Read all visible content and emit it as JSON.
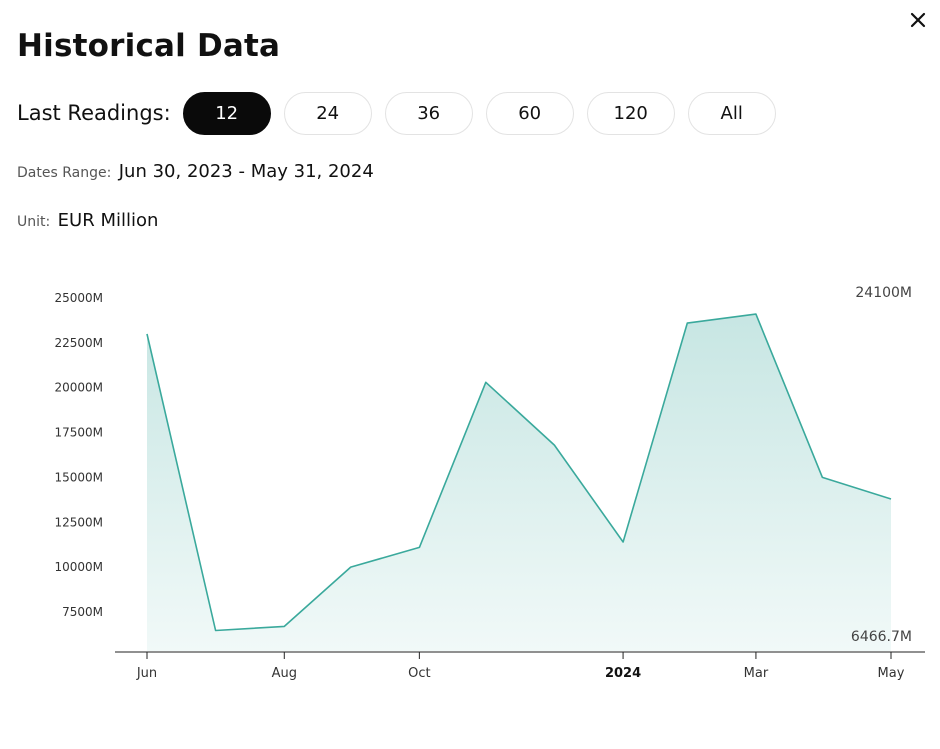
{
  "header": {
    "title": "Historical Data",
    "close_icon": "close-icon"
  },
  "readings": {
    "label": "Last Readings:",
    "options": [
      "12",
      "24",
      "36",
      "60",
      "120",
      "All"
    ],
    "selected": "12"
  },
  "meta": {
    "dates_label": "Dates Range:",
    "dates_value": "Jun 30, 2023 - May 31, 2024",
    "unit_label": "Unit:",
    "unit_value": "EUR Million"
  },
  "colors": {
    "line": "#3aa99c",
    "fill_top": "#c7e6e3",
    "fill_bottom": "#f1f9f8",
    "active_pill": "#0a0a0a"
  },
  "chart_data": {
    "type": "area",
    "x": [
      "2023-06-30",
      "2023-07-31",
      "2023-08-31",
      "2023-09-30",
      "2023-10-31",
      "2023-11-30",
      "2023-12-31",
      "2024-01-31",
      "2024-02-29",
      "2024-03-31",
      "2024-04-30",
      "2024-05-31"
    ],
    "values": [
      23000,
      6466.7,
      6700,
      10000,
      11100,
      20300,
      16800,
      11400,
      23600,
      24100,
      15000,
      13800
    ],
    "x_ticks": [
      "Jun",
      "Aug",
      "Oct",
      "2024",
      "Mar",
      "May"
    ],
    "x_tick_dates": [
      "2023-06-30",
      "2023-08-31",
      "2023-10-31",
      "2024-01-31",
      "2024-03-31",
      "2024-05-31"
    ],
    "bold_ticks": [
      "2024"
    ],
    "y_ticks": [
      "25000M",
      "22500M",
      "20000M",
      "17500M",
      "15000M",
      "12500M",
      "10000M",
      "7500M"
    ],
    "y_tick_values": [
      25000,
      22500,
      20000,
      17500,
      15000,
      12500,
      10000,
      7500
    ],
    "max_label": "24100M",
    "min_label": "6466.7M",
    "xlabel": "",
    "ylabel": "",
    "grid": false
  }
}
